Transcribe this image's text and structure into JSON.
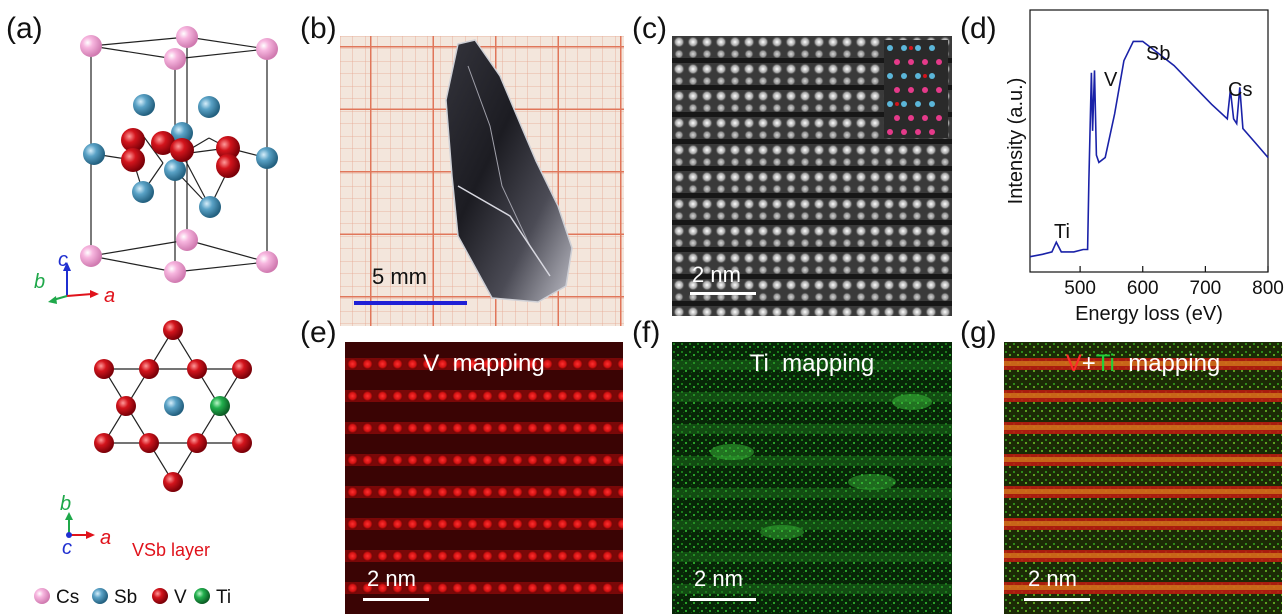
{
  "panels": {
    "a": "(a)",
    "b": "(b)",
    "c": "(c)",
    "d": "(d)",
    "e": "(e)",
    "f": "(f)",
    "g": "(g)"
  },
  "crystal": {
    "axis_c": "c",
    "axis_b": "b",
    "axis_a": "a",
    "layer_axis_b": "b",
    "layer_axis_c": "c",
    "layer_axis_a": "a",
    "layer_label": "VSb layer",
    "legend": [
      {
        "label": "Cs",
        "color": "#f4a6d7"
      },
      {
        "label": "Sb",
        "color": "#4a90b8"
      },
      {
        "label": "V",
        "color": "#c8121b"
      },
      {
        "label": "Ti",
        "color": "#1fa84a"
      }
    ]
  },
  "photo": {
    "scale_label": "5 mm",
    "scale_color": "#1f1fd6"
  },
  "stem": {
    "scale_label": "2 nm"
  },
  "eels": {
    "xlabel": "Energy loss (eV)",
    "ylabel": "Intensity (a.u.)",
    "tick_labels": [
      "500",
      "600",
      "700",
      "800"
    ],
    "peaks": {
      "ti": "Ti",
      "v": "V",
      "sb": "Sb",
      "cs": "Cs"
    },
    "line_color": "#1a22a8"
  },
  "chart_data": {
    "type": "line",
    "title": "",
    "xlabel": "Energy loss (eV)",
    "ylabel": "Intensity (a.u.)",
    "xlim": [
      420,
      800
    ],
    "ylim": [
      0,
      1
    ],
    "series": [
      {
        "x": [
          420,
          440,
          455,
          462,
          470,
          490,
          505,
          512,
          514,
          518,
          520,
          523,
          526,
          530,
          540,
          555,
          570,
          585,
          600,
          620,
          650,
          680,
          710,
          735,
          740,
          745,
          750,
          755,
          760,
          780,
          800
        ],
        "values": [
          0.03,
          0.04,
          0.05,
          0.09,
          0.05,
          0.05,
          0.06,
          0.06,
          0.35,
          0.79,
          0.55,
          0.8,
          0.45,
          0.42,
          0.44,
          0.62,
          0.84,
          0.92,
          0.92,
          0.88,
          0.82,
          0.74,
          0.66,
          0.6,
          0.72,
          0.6,
          0.58,
          0.73,
          0.56,
          0.5,
          0.44
        ]
      }
    ],
    "annotations": [
      "Ti",
      "V",
      "Sb",
      "Cs"
    ]
  },
  "maps": {
    "e": {
      "prefix": "",
      "v": "V",
      "ti": "",
      "suffix": "  mapping",
      "scale": "2 nm"
    },
    "f": {
      "prefix": "",
      "v": "",
      "ti": "Ti",
      "suffix": "  mapping",
      "scale": "2 nm"
    },
    "g": {
      "prefix": "",
      "v": "V",
      "plus": "+",
      "ti": "Ti",
      "suffix": "  mapping",
      "scale": "2 nm"
    }
  }
}
